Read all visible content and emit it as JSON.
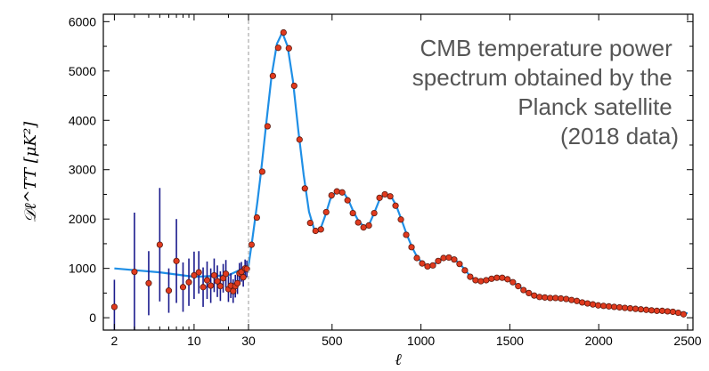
{
  "chart_data": {
    "type": "scatter",
    "title": "",
    "annotation_lines": [
      "CMB temperature power",
      "spectrum obtained by the",
      "Planck satellite",
      "(2018 data)"
    ],
    "xlabel": "ℓ",
    "ylabel": "𝒟ℓ^TT [μK²]",
    "x_scale": "log for ℓ < 30, linear for ℓ ≥ 30",
    "x_transition": 30,
    "xlim": [
      1.6,
      2530
    ],
    "ylim": [
      -250,
      6150
    ],
    "x_ticks": [
      2,
      10,
      30,
      500,
      1000,
      1500,
      2000,
      2500
    ],
    "y_ticks": [
      0,
      1000,
      2000,
      3000,
      4000,
      5000,
      6000
    ],
    "grid": false,
    "colors": {
      "model": "#1f8fe6",
      "points": "#e03a1e",
      "point_edge": "#5a1a10",
      "error_bars": "#1a1a8c",
      "divider": "#999999"
    },
    "series": [
      {
        "role": "low-ell measurements with error bars",
        "x": [
          2,
          3,
          4,
          5,
          6,
          7,
          8,
          9,
          10,
          11,
          12,
          13,
          14,
          15,
          16,
          17,
          18,
          19,
          20,
          21,
          22,
          23,
          24,
          25,
          26,
          27,
          28,
          29
        ],
        "y": [
          220,
          930,
          700,
          1480,
          550,
          1150,
          620,
          720,
          860,
          920,
          620,
          760,
          650,
          860,
          740,
          640,
          800,
          890,
          580,
          650,
          540,
          640,
          700,
          900,
          930,
          820,
          1000,
          990
        ],
        "err": [
          550,
          1200,
          650,
          1150,
          450,
          850,
          500,
          480,
          480,
          430,
          400,
          380,
          350,
          340,
          320,
          300,
          290,
          280,
          260,
          250,
          240,
          230,
          220,
          210,
          200,
          190,
          180,
          170
        ]
      },
      {
        "role": "binned high-ell measurements",
        "x": [
          47,
          77,
          107,
          137,
          167,
          197,
          227,
          257,
          287,
          317,
          347,
          377,
          407,
          437,
          467,
          497,
          527,
          557,
          587,
          617,
          647,
          677,
          707,
          737,
          767,
          797,
          827,
          857,
          887,
          917,
          947,
          977,
          1007,
          1037,
          1067,
          1097,
          1127,
          1157,
          1187,
          1217,
          1247,
          1277,
          1307,
          1337,
          1367,
          1397,
          1427,
          1457,
          1487,
          1517,
          1547,
          1577,
          1607,
          1637,
          1667,
          1697,
          1727,
          1757,
          1787,
          1817,
          1847,
          1877,
          1907,
          1937,
          1967,
          1997,
          2027,
          2057,
          2087,
          2117,
          2147,
          2177,
          2207,
          2237,
          2267,
          2297,
          2327,
          2357,
          2387,
          2417,
          2447,
          2477
        ],
        "y": [
          1480,
          2030,
          2960,
          3880,
          4900,
          5470,
          5780,
          5460,
          4700,
          3610,
          2620,
          1920,
          1760,
          1790,
          2140,
          2480,
          2560,
          2540,
          2380,
          2120,
          1930,
          1830,
          1870,
          2120,
          2430,
          2500,
          2460,
          2270,
          1990,
          1680,
          1430,
          1210,
          1100,
          1040,
          1060,
          1150,
          1210,
          1220,
          1180,
          1090,
          960,
          830,
          760,
          740,
          760,
          790,
          810,
          810,
          780,
          720,
          640,
          560,
          500,
          450,
          420,
          410,
          400,
          400,
          390,
          380,
          360,
          340,
          310,
          290,
          270,
          250,
          240,
          230,
          220,
          210,
          200,
          190,
          180,
          170,
          160,
          150,
          140,
          140,
          130,
          120,
          100,
          70
        ]
      },
      {
        "role": "best-fit model curve",
        "x": [
          2,
          5,
          10,
          20,
          30,
          50,
          80,
          100,
          130,
          160,
          190,
          220,
          250,
          280,
          310,
          340,
          370,
          400,
          430,
          460,
          490,
          530,
          560,
          590,
          620,
          650,
          680,
          710,
          740,
          770,
          800,
          830,
          860,
          890,
          920,
          950,
          980,
          1010,
          1040,
          1070,
          1100,
          1130,
          1160,
          1190,
          1220,
          1250,
          1280,
          1310,
          1340,
          1370,
          1400,
          1430,
          1460,
          1490,
          1520,
          1550,
          1580,
          1610,
          1640,
          1700,
          1760,
          1820,
          1880,
          1940,
          2000,
          2100,
          2200,
          2300,
          2400,
          2500
        ],
        "y": [
          1000,
          920,
          830,
          860,
          1050,
          1550,
          2350,
          2950,
          3950,
          4900,
          5550,
          5780,
          5500,
          4800,
          3800,
          2900,
          2150,
          1780,
          1750,
          2050,
          2400,
          2580,
          2560,
          2400,
          2150,
          1950,
          1850,
          1900,
          2150,
          2420,
          2510,
          2470,
          2280,
          1990,
          1690,
          1430,
          1220,
          1100,
          1040,
          1070,
          1150,
          1210,
          1220,
          1180,
          1090,
          960,
          830,
          760,
          740,
          760,
          790,
          810,
          810,
          780,
          720,
          640,
          560,
          500,
          450,
          410,
          400,
          390,
          350,
          300,
          260,
          220,
          180,
          150,
          120,
          90
        ]
      }
    ]
  }
}
